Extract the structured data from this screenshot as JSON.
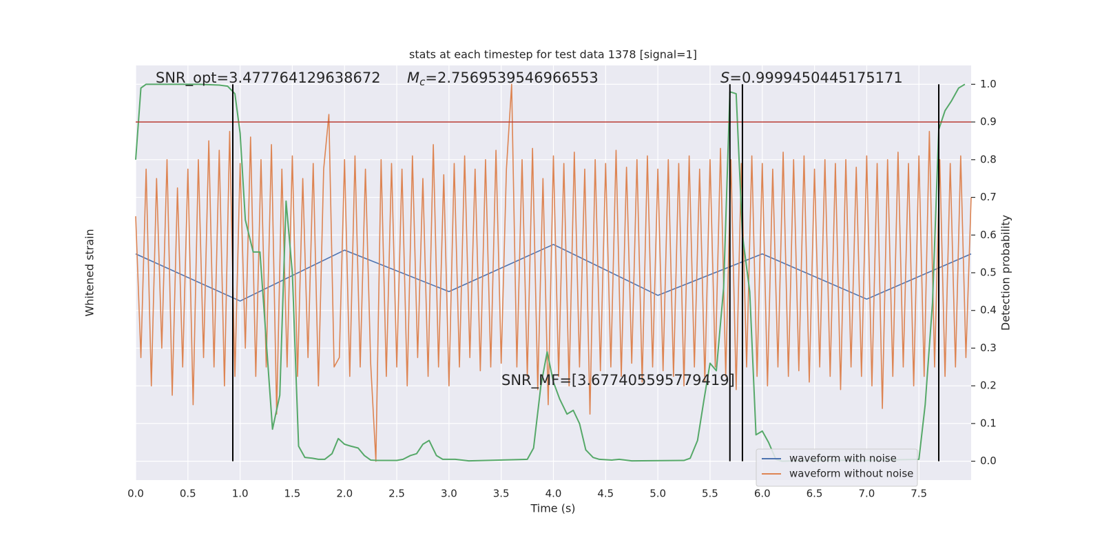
{
  "chart_data": {
    "type": "line",
    "title": "stats at each timestep for test data 1378 [signal=1]",
    "xlabel": "Time (s)",
    "ylabel": "Whitened strain",
    "y2label": "Detection probability",
    "xlim": [
      0,
      8
    ],
    "ylim": [
      -1.1,
      1.1
    ],
    "y2lim": [
      -0.05,
      1.05
    ],
    "xticks": [
      {
        "value": 0,
        "label": "0.0"
      },
      0.5,
      {
        "value": 1,
        "label": "1.0"
      },
      1.5,
      {
        "value": 2,
        "label": "2.0"
      },
      2.5,
      {
        "value": 3,
        "label": "3.0"
      },
      3.5,
      {
        "value": 4,
        "label": "4.0"
      },
      4.5,
      {
        "value": 5,
        "label": "5.0"
      },
      5.5,
      {
        "value": 6,
        "label": "6.0"
      },
      6.5,
      {
        "value": 7,
        "label": "7.0"
      },
      7.5
    ],
    "y2ticks": [
      {
        "value": 0,
        "label": "0.0"
      },
      0.1,
      0.2,
      0.3,
      0.4,
      0.5,
      0.6,
      0.7,
      0.8,
      0.9,
      {
        "value": 1,
        "label": "1.0"
      }
    ],
    "grid": true,
    "legend": "lower right",
    "series": [
      {
        "name": "waveform with noise",
        "color": "#4c72b0",
        "x": [
          0,
          1,
          2,
          3,
          4,
          5,
          6,
          7,
          8
        ],
        "values": [
          0.1,
          -0.15,
          0.12,
          -0.1,
          0.15,
          -0.12,
          0.1,
          -0.14,
          0.1
        ]
      },
      {
        "name": "waveform without noise",
        "color": "#dd8452",
        "x": [
          0,
          0.05,
          0.1,
          0.15,
          0.2,
          0.25,
          0.3,
          0.35,
          0.4,
          0.45,
          0.5,
          0.55,
          0.6,
          0.65,
          0.7,
          0.75,
          0.8,
          0.85,
          0.9,
          0.95,
          1,
          1.05,
          1.1,
          1.15,
          1.2,
          1.25,
          1.3,
          1.35,
          1.4,
          1.45,
          1.5,
          1.55,
          1.6,
          1.65,
          1.7,
          1.75,
          1.8,
          1.85,
          1.9,
          1.95,
          2,
          2.05,
          2.1,
          2.15,
          2.2,
          2.25,
          2.3,
          2.35,
          2.4,
          2.45,
          2.5,
          2.55,
          2.6,
          2.65,
          2.7,
          2.75,
          2.8,
          2.85,
          2.9,
          2.95,
          3,
          3.05,
          3.1,
          3.15,
          3.2,
          3.25,
          3.3,
          3.35,
          3.4,
          3.45,
          3.5,
          3.55,
          3.6,
          3.65,
          3.7,
          3.75,
          3.8,
          3.85,
          3.9,
          3.95,
          4,
          4.05,
          4.1,
          4.15,
          4.2,
          4.25,
          4.3,
          4.35,
          4.4,
          4.45,
          4.5,
          4.55,
          4.6,
          4.65,
          4.7,
          4.75,
          4.8,
          4.85,
          4.9,
          4.95,
          5,
          5.05,
          5.1,
          5.15,
          5.2,
          5.25,
          5.3,
          5.35,
          5.4,
          5.45,
          5.5,
          5.55,
          5.6,
          5.65,
          5.7,
          5.75,
          5.8,
          5.85,
          5.9,
          5.95,
          6,
          6.05,
          6.1,
          6.15,
          6.2,
          6.25,
          6.3,
          6.35,
          6.4,
          6.45,
          6.5,
          6.55,
          6.6,
          6.65,
          6.7,
          6.75,
          6.8,
          6.85,
          6.9,
          6.95,
          7,
          7.05,
          7.1,
          7.15,
          7.2,
          7.25,
          7.3,
          7.35,
          7.4,
          7.45,
          7.5,
          7.55,
          7.6,
          7.65,
          7.7,
          7.75,
          7.8,
          7.85,
          7.9,
          7.95,
          8
        ],
        "values": [
          0.3,
          -0.45,
          0.55,
          -0.6,
          0.5,
          -0.4,
          0.6,
          -0.65,
          0.45,
          -0.5,
          0.55,
          -0.7,
          0.6,
          -0.45,
          0.7,
          -0.5,
          0.65,
          -0.6,
          0.75,
          -0.55,
          0.58,
          -0.4,
          0.72,
          -0.55,
          0.6,
          -0.5,
          0.68,
          -0.75,
          0.55,
          -0.5,
          0.62,
          -0.55,
          0.5,
          -0.45,
          0.58,
          -0.6,
          0.55,
          0.84,
          -0.5,
          -0.45,
          0.6,
          -0.55,
          0.62,
          -0.5,
          0.55,
          -0.48,
          -1.0,
          0.6,
          -0.55,
          0.58,
          -0.5,
          0.55,
          -0.6,
          0.62,
          -0.45,
          0.5,
          -0.55,
          0.68,
          -0.5,
          0.52,
          -0.6,
          0.58,
          -0.5,
          0.62,
          -0.45,
          0.55,
          -0.52,
          0.6,
          -0.5,
          0.65,
          -0.48,
          0.55,
          1.0,
          -0.5,
          0.6,
          -0.55,
          0.66,
          -0.62,
          0.5,
          -0.7,
          0.62,
          -0.55,
          0.58,
          -0.6,
          0.64,
          -0.5,
          0.55,
          -0.75,
          0.6,
          -0.52,
          0.58,
          -0.5,
          0.65,
          -0.55,
          0.56,
          -0.48,
          0.6,
          -0.58,
          0.62,
          -0.5,
          0.55,
          -0.52,
          0.6,
          -0.55,
          0.58,
          -0.6,
          0.62,
          -0.5,
          0.55,
          -0.58,
          0.6,
          -0.5,
          0.66,
          -0.55,
          0.6,
          -0.62,
          0.58,
          -0.5,
          0.62,
          -0.55,
          0.58,
          -0.6,
          0.55,
          -0.5,
          0.64,
          -0.55,
          0.6,
          -0.52,
          0.62,
          -0.58,
          0.55,
          -0.5,
          0.6,
          -0.55,
          0.58,
          -0.62,
          0.6,
          -0.5,
          0.56,
          -0.55,
          0.62,
          -0.6,
          0.58,
          -0.72,
          0.6,
          -0.55,
          0.64,
          -0.5,
          0.58,
          -0.6,
          0.62,
          -0.55,
          0.75,
          -0.5,
          0.6,
          -0.55,
          0.58,
          -0.5,
          0.62,
          -0.45,
          0.4
        ]
      },
      {
        "color": "#55a868",
        "axis": "y2",
        "x": [
          0,
          0.05,
          0.1,
          0.2,
          0.4,
          0.6,
          0.8,
          0.88,
          0.95,
          1.0,
          1.05,
          1.125,
          1.19,
          1.25,
          1.31,
          1.38,
          1.44,
          1.5,
          1.56,
          1.62,
          1.69,
          1.75,
          1.81,
          1.88,
          1.94,
          2.0,
          2.06,
          2.13,
          2.19,
          2.25,
          2.31,
          2.5,
          2.56,
          2.63,
          2.69,
          2.75,
          2.81,
          2.88,
          2.94,
          3.06,
          3.19,
          3.75,
          3.81,
          3.88,
          3.94,
          4.0,
          4.06,
          4.13,
          4.19,
          4.25,
          4.31,
          4.38,
          4.44,
          4.56,
          4.63,
          4.75,
          5.25,
          5.31,
          5.38,
          5.44,
          5.5,
          5.56,
          5.63,
          5.69,
          5.75,
          5.81,
          5.88,
          5.94,
          6.0,
          6.06,
          6.13,
          6.19,
          6.5,
          7.0,
          7.5,
          7.56,
          7.63,
          7.69,
          7.75,
          7.81,
          7.88,
          7.94
        ],
        "values": [
          0.8,
          0.99,
          1.0,
          1.0,
          1.0,
          1.0,
          0.998,
          0.995,
          0.975,
          0.87,
          0.64,
          0.555,
          0.555,
          0.32,
          0.085,
          0.175,
          0.69,
          0.5,
          0.04,
          0.01,
          0.008,
          0.005,
          0.005,
          0.02,
          0.06,
          0.045,
          0.04,
          0.035,
          0.015,
          0.003,
          0.002,
          0.002,
          0.005,
          0.015,
          0.02,
          0.045,
          0.055,
          0.015,
          0.005,
          0.005,
          0.001,
          0.005,
          0.035,
          0.2,
          0.29,
          0.21,
          0.165,
          0.125,
          0.135,
          0.1,
          0.03,
          0.01,
          0.005,
          0.003,
          0.005,
          0.001,
          0.002,
          0.008,
          0.055,
          0.16,
          0.26,
          0.24,
          0.46,
          0.98,
          0.975,
          0.6,
          0.45,
          0.07,
          0.08,
          0.05,
          0.005,
          0.0,
          0.003,
          0.002,
          0.005,
          0.15,
          0.42,
          0.88,
          0.93,
          0.955,
          0.99,
          1.0
        ]
      }
    ],
    "threshold": {
      "value": 0.9,
      "axis": "y2",
      "color": "#b83a32"
    },
    "vlines": {
      "x": [
        0.93,
        5.69,
        5.81,
        7.69
      ],
      "ymin": 0,
      "ymax": 1,
      "axis": "y2",
      "color": "#000000"
    },
    "annotations": {
      "snr_opt": "SNR_opt=3.477764129638672",
      "mc": {
        "symbol": "M",
        "subscript": "c",
        "text": "=2.7569539546966553"
      },
      "s": {
        "symbol": "S",
        "text": "=0.9999450445175171"
      },
      "snr_mf": "SNR_MF=[3.677405595779419]"
    }
  }
}
